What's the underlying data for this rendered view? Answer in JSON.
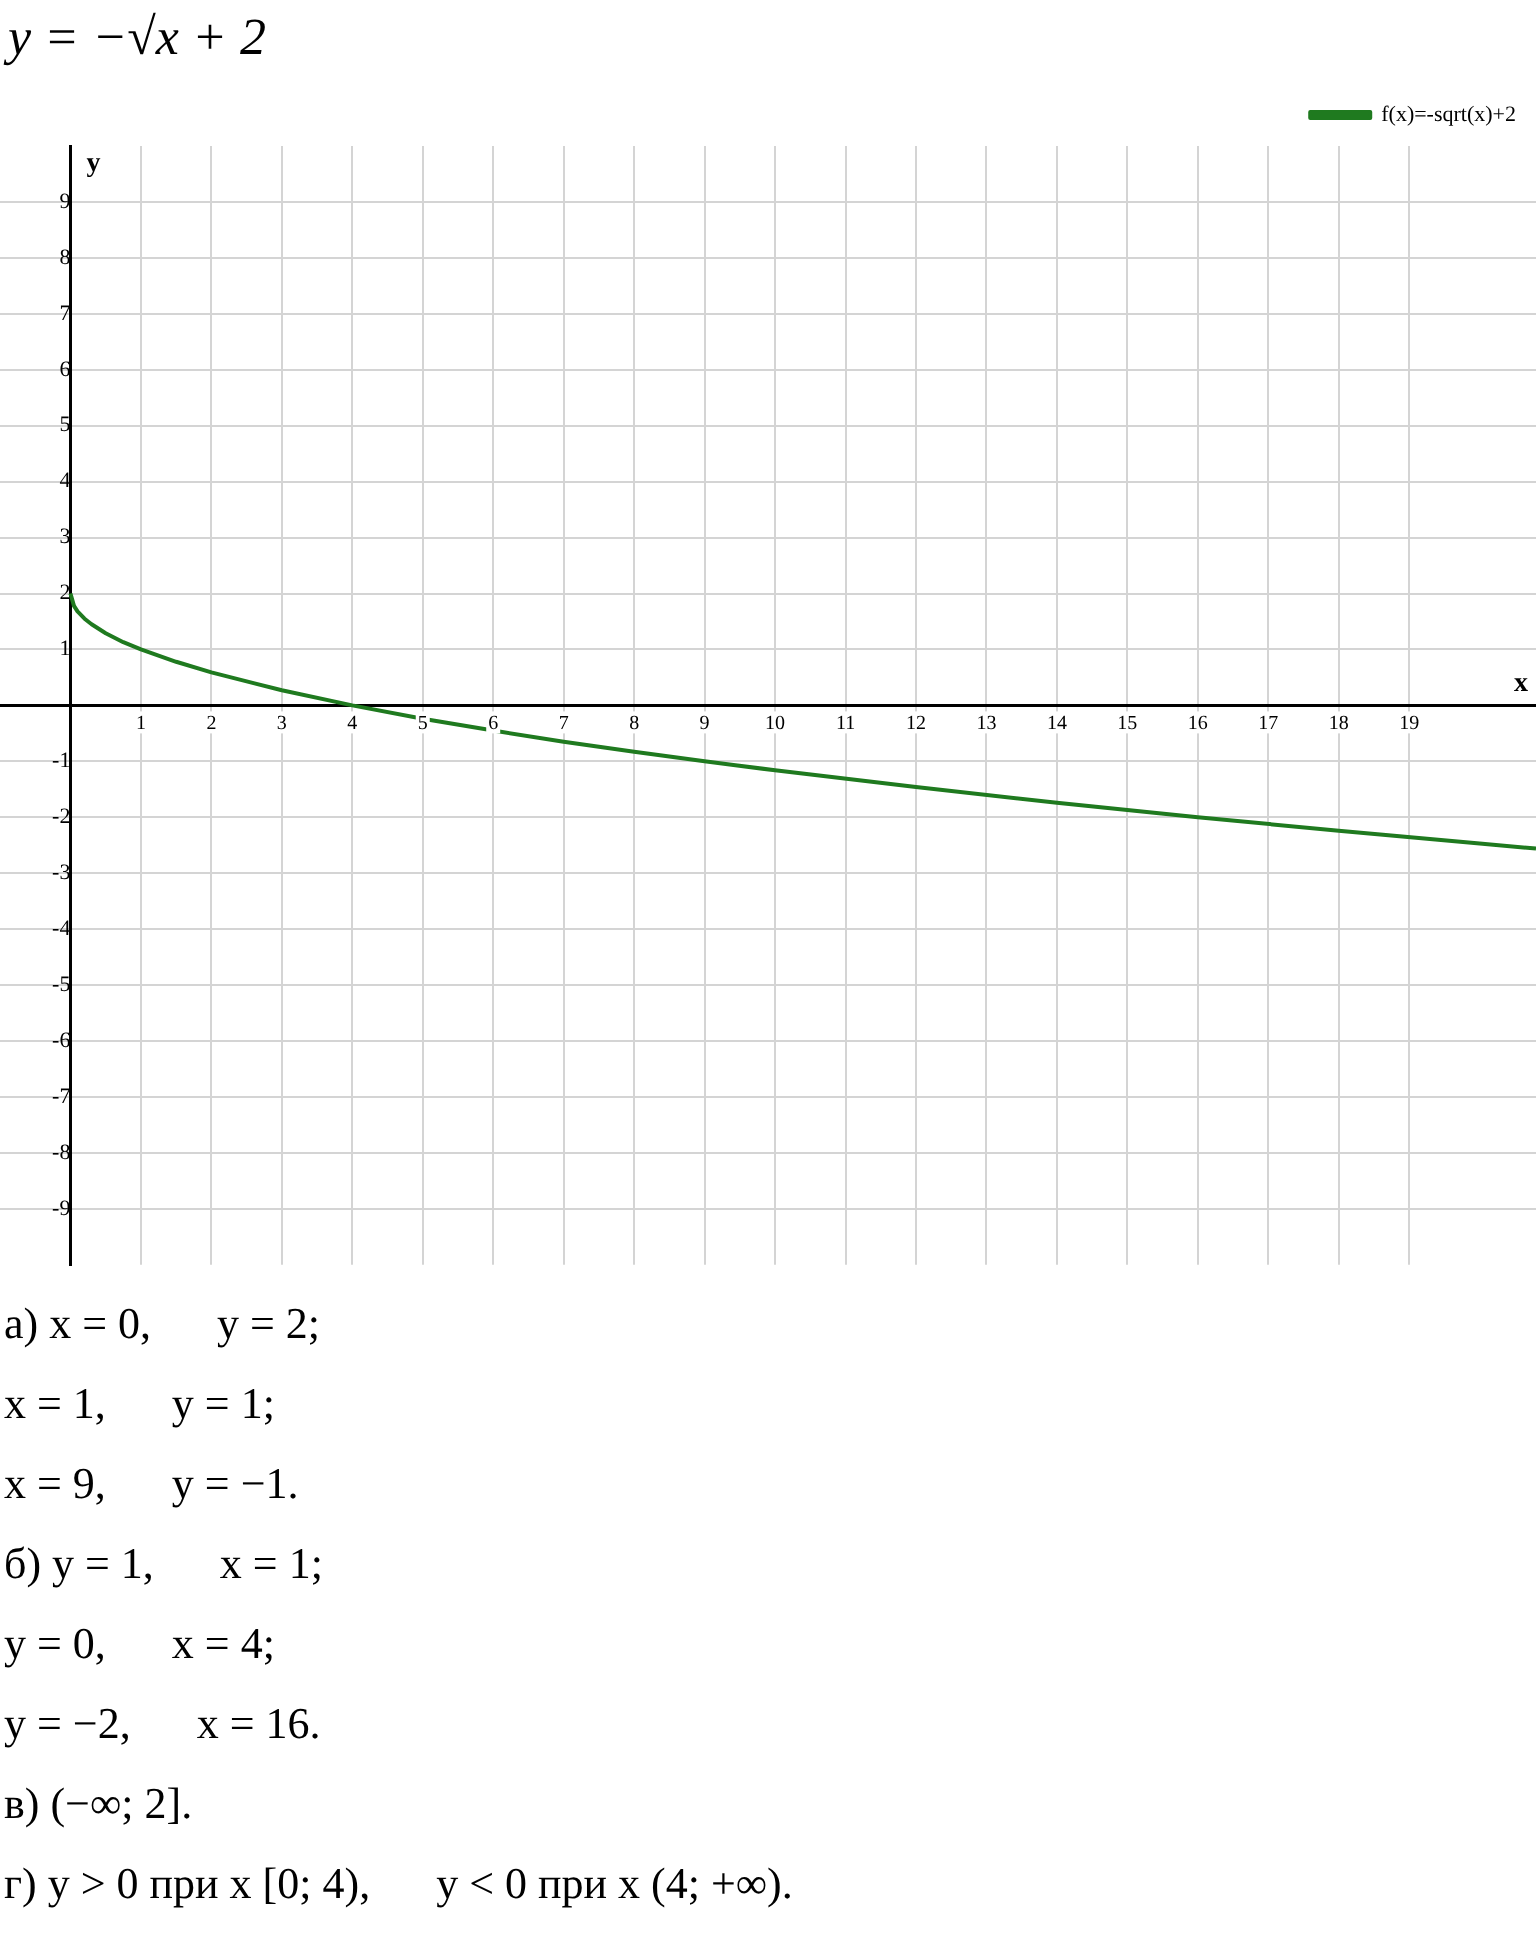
{
  "chart_data": {
    "type": "line",
    "title": "y = −√x + 2",
    "xlabel": "x",
    "ylabel": "y",
    "x": [
      0,
      0.05,
      0.1,
      0.2,
      0.3,
      0.5,
      0.75,
      1,
      1.5,
      2,
      3,
      4,
      5,
      6,
      7,
      8,
      9,
      10,
      12,
      14,
      16,
      18,
      20,
      20.8
    ],
    "series": [
      {
        "name": "f(x)=-sqrt(x)+2",
        "color": "#1f7a1f",
        "values": [
          2,
          1.78,
          1.68,
          1.55,
          1.45,
          1.29,
          1.13,
          1,
          0.78,
          0.59,
          0.27,
          0,
          -0.24,
          -0.45,
          -0.65,
          -0.83,
          -1,
          -1.16,
          -1.46,
          -1.74,
          -2,
          -2.24,
          -2.47,
          -2.56
        ]
      }
    ],
    "xlim": [
      -1,
      20.8
    ],
    "ylim": [
      -10,
      10
    ],
    "xticks": [
      1,
      2,
      3,
      4,
      5,
      6,
      7,
      8,
      9,
      10,
      11,
      12,
      13,
      14,
      15,
      16,
      17,
      18,
      19
    ],
    "yticks": [
      -9,
      -8,
      -7,
      -6,
      -5,
      -4,
      -3,
      -2,
      -1,
      1,
      2,
      3,
      4,
      5,
      6,
      7,
      8,
      9
    ],
    "grid": true,
    "legend": "top right",
    "marker": "none",
    "line_style": "solid",
    "annotations": [
      "а) x = 0,      y = 2;",
      "x = 1,      y = 1;",
      "x = 9,      y = −1.",
      "б) y = 1,      x = 1;",
      "y = 0,      x = 4;",
      "y = −2,      x = 16.",
      "в) (−∞; 2].",
      "г) y > 0 при x [0; 4),      y < 0 при x (4; +∞)."
    ]
  }
}
